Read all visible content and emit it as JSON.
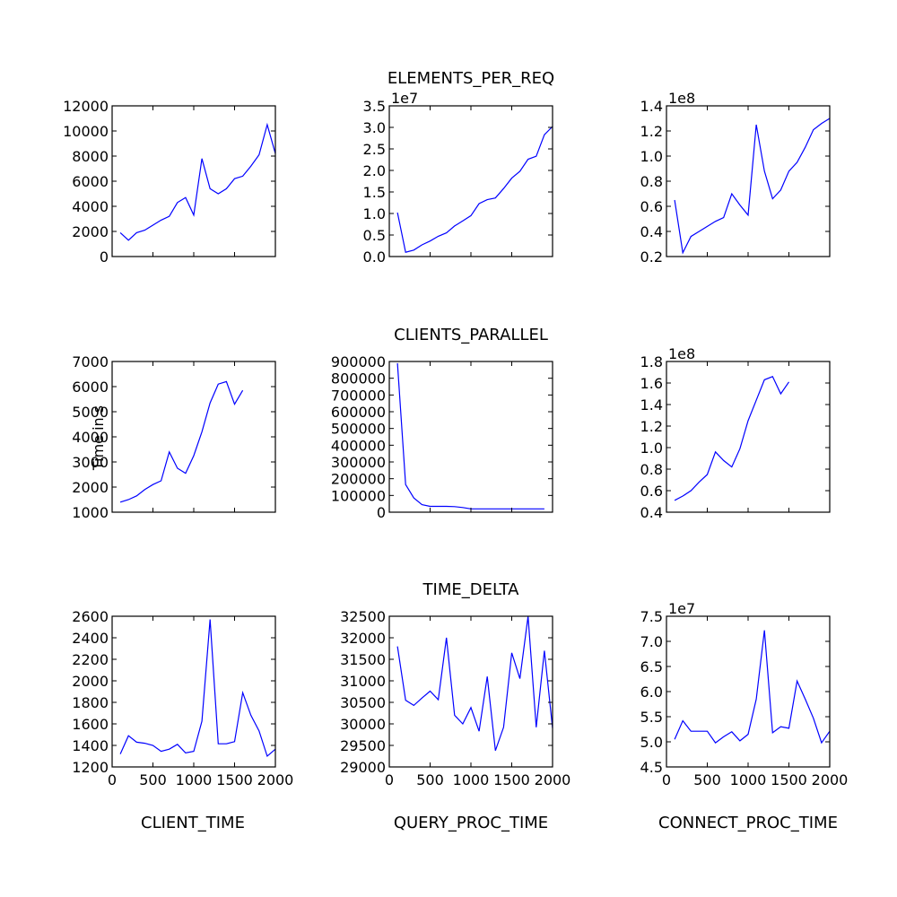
{
  "figure": {
    "row_titles": [
      "ELEMENTS_PER_REQ",
      "CLIENTS_PARALLEL",
      "TIME_DELTA"
    ],
    "col_labels": [
      "CLIENT_TIME",
      "QUERY_PROC_TIME",
      "CONNECT_PROC_TIME"
    ],
    "ylabel": "Time in s",
    "line_color": "#0000ff"
  },
  "chart_data": [
    {
      "type": "line",
      "row": 0,
      "col": 0,
      "xlim": [
        0,
        2000
      ],
      "ylim": [
        0,
        12000
      ],
      "yticks": [
        0,
        2000,
        4000,
        6000,
        8000,
        10000,
        12000
      ],
      "yticklabels": [
        "0",
        "2000",
        "4000",
        "6000",
        "8000",
        "10000",
        "12000"
      ],
      "xticks": [],
      "xticklabels": [],
      "offset": "",
      "x": [
        100,
        200,
        300,
        400,
        500,
        600,
        700,
        800,
        900,
        1000,
        1100,
        1200,
        1300,
        1400,
        1500,
        1600,
        1700,
        1800,
        1900,
        2000
      ],
      "y": [
        1900,
        1300,
        1900,
        2100,
        2500,
        2900,
        3200,
        4300,
        4700,
        3300,
        7800,
        5400,
        5000,
        5400,
        6200,
        6400,
        7200,
        8100,
        10500,
        8200
      ]
    },
    {
      "type": "line",
      "row": 0,
      "col": 1,
      "xlim": [
        0,
        2000
      ],
      "ylim": [
        0,
        3.5
      ],
      "yticks": [
        0,
        0.5,
        1.0,
        1.5,
        2.0,
        2.5,
        3.0,
        3.5
      ],
      "yticklabels": [
        "0.0",
        "0.5",
        "1.0",
        "1.5",
        "2.0",
        "2.5",
        "3.0",
        "3.5"
      ],
      "xticks": [],
      "xticklabels": [],
      "offset": "1e7",
      "x": [
        100,
        200,
        300,
        400,
        500,
        600,
        700,
        800,
        900,
        1000,
        1100,
        1200,
        1300,
        1400,
        1500,
        1600,
        1700,
        1800,
        1900,
        2000
      ],
      "y": [
        1.02,
        0.1,
        0.15,
        0.27,
        0.36,
        0.47,
        0.55,
        0.71,
        0.83,
        0.95,
        1.23,
        1.32,
        1.36,
        1.58,
        1.82,
        1.98,
        2.26,
        2.33,
        2.83,
        3.02
      ]
    },
    {
      "type": "line",
      "row": 0,
      "col": 2,
      "xlim": [
        0,
        2000
      ],
      "ylim": [
        0.2,
        1.4
      ],
      "yticks": [
        0.2,
        0.4,
        0.6,
        0.8,
        1.0,
        1.2,
        1.4
      ],
      "yticklabels": [
        "0.2",
        "0.4",
        "0.6",
        "0.8",
        "1.0",
        "1.2",
        "1.4"
      ],
      "xticks": [],
      "xticklabels": [],
      "offset": "1e8",
      "x": [
        100,
        200,
        300,
        400,
        500,
        600,
        700,
        800,
        900,
        1000,
        1100,
        1200,
        1300,
        1400,
        1500,
        1600,
        1700,
        1800,
        1900,
        2000
      ],
      "y": [
        0.65,
        0.23,
        0.36,
        0.4,
        0.44,
        0.48,
        0.51,
        0.7,
        0.61,
        0.53,
        1.25,
        0.88,
        0.66,
        0.73,
        0.88,
        0.95,
        1.07,
        1.21,
        1.26,
        1.3
      ]
    },
    {
      "type": "line",
      "row": 1,
      "col": 0,
      "xlim": [
        0,
        2000
      ],
      "ylim": [
        1000,
        7000
      ],
      "yticks": [
        1000,
        2000,
        3000,
        4000,
        5000,
        6000,
        7000
      ],
      "yticklabels": [
        "1000",
        "2000",
        "3000",
        "4000",
        "5000",
        "6000",
        "7000"
      ],
      "xticks": [],
      "xticklabels": [],
      "offset": "",
      "x": [
        100,
        200,
        300,
        400,
        500,
        600,
        700,
        800,
        900,
        1000,
        1100,
        1200,
        1300,
        1400,
        1500,
        1600,
        1700,
        1800,
        1900
      ],
      "y": [
        1400,
        1500,
        1650,
        1900,
        2100,
        2250,
        3400,
        2750,
        2550,
        3250,
        4200,
        5350,
        6100,
        6200,
        5300,
        5850,
        null,
        null,
        null
      ]
    },
    {
      "type": "line",
      "row": 1,
      "col": 1,
      "xlim": [
        0,
        2000
      ],
      "ylim": [
        0,
        900000
      ],
      "yticks": [
        0,
        100000,
        200000,
        300000,
        400000,
        500000,
        600000,
        700000,
        800000,
        900000
      ],
      "yticklabels": [
        "0",
        "100000",
        "200000",
        "300000",
        "400000",
        "500000",
        "600000",
        "700000",
        "800000",
        "900000"
      ],
      "xticks": [],
      "xticklabels": [],
      "offset": "",
      "x": [
        100,
        200,
        300,
        400,
        500,
        600,
        700,
        800,
        900,
        1000,
        1100,
        1200,
        1300,
        1400,
        1500,
        1600,
        1700,
        1800,
        1900
      ],
      "y": [
        890000,
        165000,
        85000,
        45000,
        35000,
        35000,
        35000,
        33000,
        28000,
        20000,
        20000,
        20000,
        20000,
        20000,
        20000,
        20000,
        20000,
        20000,
        20000
      ]
    },
    {
      "type": "line",
      "row": 1,
      "col": 2,
      "xlim": [
        0,
        2000
      ],
      "ylim": [
        0.4,
        1.8
      ],
      "yticks": [
        0.4,
        0.6,
        0.8,
        1.0,
        1.2,
        1.4,
        1.6,
        1.8
      ],
      "yticklabels": [
        "0.4",
        "0.6",
        "0.8",
        "1.0",
        "1.2",
        "1.4",
        "1.6",
        "1.8"
      ],
      "xticks": [],
      "xticklabels": [],
      "offset": "1e8",
      "x": [
        100,
        200,
        300,
        400,
        500,
        600,
        700,
        800,
        900,
        1000,
        1100,
        1200,
        1300,
        1400,
        1500,
        1600,
        1700,
        1800,
        1900
      ],
      "y": [
        0.51,
        0.55,
        0.6,
        0.68,
        0.75,
        0.96,
        0.88,
        0.82,
        0.99,
        1.25,
        1.44,
        1.63,
        1.66,
        1.5,
        1.61,
        null,
        null,
        null,
        null
      ]
    },
    {
      "type": "line",
      "row": 2,
      "col": 0,
      "xlim": [
        0,
        2000
      ],
      "ylim": [
        1200,
        2600
      ],
      "yticks": [
        1200,
        1400,
        1600,
        1800,
        2000,
        2200,
        2400,
        2600
      ],
      "yticklabels": [
        "1200",
        "1400",
        "1600",
        "1800",
        "2000",
        "2200",
        "2400",
        "2600"
      ],
      "xticks": [
        0,
        500,
        1000,
        1500,
        2000
      ],
      "xticklabels": [
        "0",
        "500",
        "1000",
        "1500",
        "2000"
      ],
      "offset": "",
      "x": [
        100,
        200,
        300,
        400,
        500,
        600,
        700,
        800,
        900,
        1000,
        1100,
        1200,
        1300,
        1400,
        1500,
        1600,
        1700,
        1800,
        1900,
        2000
      ],
      "y": [
        1320,
        1490,
        1430,
        1420,
        1400,
        1345,
        1365,
        1410,
        1330,
        1345,
        1625,
        2570,
        1415,
        1415,
        1435,
        1890,
        1680,
        1535,
        1300,
        1365
      ]
    },
    {
      "type": "line",
      "row": 2,
      "col": 1,
      "xlim": [
        0,
        2000
      ],
      "ylim": [
        29000,
        32500
      ],
      "yticks": [
        29000,
        29500,
        30000,
        30500,
        31000,
        31500,
        32000,
        32500
      ],
      "yticklabels": [
        "29000",
        "29500",
        "30000",
        "30500",
        "31000",
        "31500",
        "32000",
        "32500"
      ],
      "xticks": [
        0,
        500,
        1000,
        1500,
        2000
      ],
      "xticklabels": [
        "0",
        "500",
        "1000",
        "1500",
        "2000"
      ],
      "offset": "",
      "x": [
        100,
        200,
        300,
        400,
        500,
        600,
        700,
        800,
        900,
        1000,
        1100,
        1200,
        1300,
        1400,
        1500,
        1600,
        1700,
        1800,
        1900,
        2000
      ],
      "y": [
        31800,
        30550,
        30430,
        30600,
        30760,
        30560,
        32000,
        30200,
        30000,
        30380,
        29830,
        31100,
        29380,
        29920,
        31650,
        31050,
        32500,
        29920,
        31700,
        29900
      ]
    },
    {
      "type": "line",
      "row": 2,
      "col": 2,
      "xlim": [
        0,
        2000
      ],
      "ylim": [
        4.5,
        7.5
      ],
      "yticks": [
        4.5,
        5.0,
        5.5,
        6.0,
        6.5,
        7.0,
        7.5
      ],
      "yticklabels": [
        "4.5",
        "5.0",
        "5.5",
        "6.0",
        "6.5",
        "7.0",
        "7.5"
      ],
      "xticks": [
        0,
        500,
        1000,
        1500,
        2000
      ],
      "xticklabels": [
        "0",
        "500",
        "1000",
        "1500",
        "2000"
      ],
      "offset": "1e7",
      "x": [
        100,
        200,
        300,
        400,
        500,
        600,
        700,
        800,
        900,
        1000,
        1100,
        1200,
        1300,
        1400,
        1500,
        1600,
        1700,
        1800,
        1900,
        2000
      ],
      "y": [
        5.05,
        5.42,
        5.21,
        5.21,
        5.21,
        4.98,
        5.1,
        5.2,
        5.02,
        5.15,
        5.85,
        7.22,
        5.18,
        5.3,
        5.27,
        6.21,
        5.85,
        5.47,
        4.98,
        5.21
      ]
    }
  ]
}
